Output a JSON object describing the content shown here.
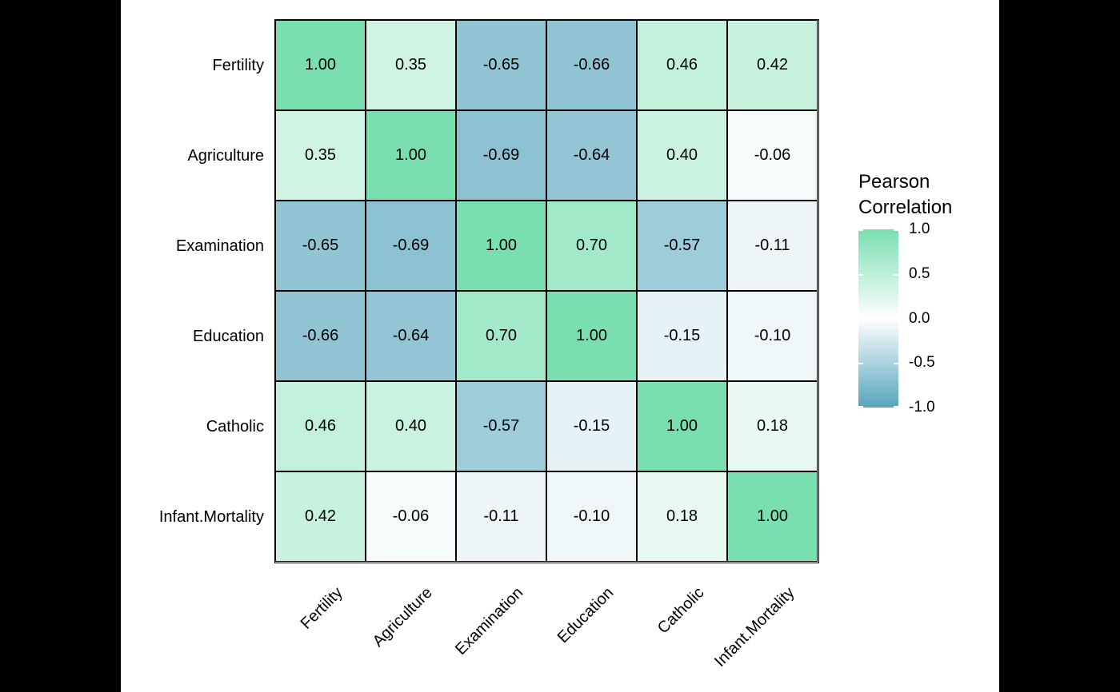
{
  "canvas": {
    "bg": "#000000",
    "panel_bg": "#ffffff"
  },
  "chart_data": {
    "type": "heatmap",
    "title": "",
    "x_categories": [
      "Fertility",
      "Agriculture",
      "Examination",
      "Education",
      "Catholic",
      "Infant.Mortality"
    ],
    "y_categories": [
      "Fertility",
      "Agriculture",
      "Examination",
      "Education",
      "Catholic",
      "Infant.Mortality"
    ],
    "matrix": [
      [
        1.0,
        0.35,
        -0.65,
        -0.66,
        0.46,
        0.42
      ],
      [
        0.35,
        1.0,
        -0.69,
        -0.64,
        0.4,
        -0.06
      ],
      [
        -0.65,
        -0.69,
        1.0,
        0.7,
        -0.57,
        -0.11
      ],
      [
        -0.66,
        -0.64,
        0.7,
        1.0,
        -0.15,
        -0.1
      ],
      [
        0.46,
        0.4,
        -0.57,
        -0.15,
        1.0,
        0.18
      ],
      [
        0.42,
        -0.06,
        -0.11,
        -0.1,
        0.18,
        1.0
      ]
    ],
    "value_decimals": 2,
    "legend": {
      "title_lines": [
        "Pearson",
        "Correlation"
      ],
      "ticks": [
        "1.0",
        "0.5",
        "0.0",
        "-0.5",
        "-1.0"
      ],
      "tick_values": [
        1.0,
        0.5,
        0.0,
        -0.5,
        -1.0
      ],
      "range": [
        -1,
        1
      ],
      "position": "right"
    },
    "colors": {
      "high": "#79DFB1",
      "mid": "#FFFFFF",
      "low": "#57A5BC",
      "cell_border": "#000000",
      "text": "#000000"
    },
    "layout": {
      "grid": true,
      "x_label_angle": 45
    }
  }
}
